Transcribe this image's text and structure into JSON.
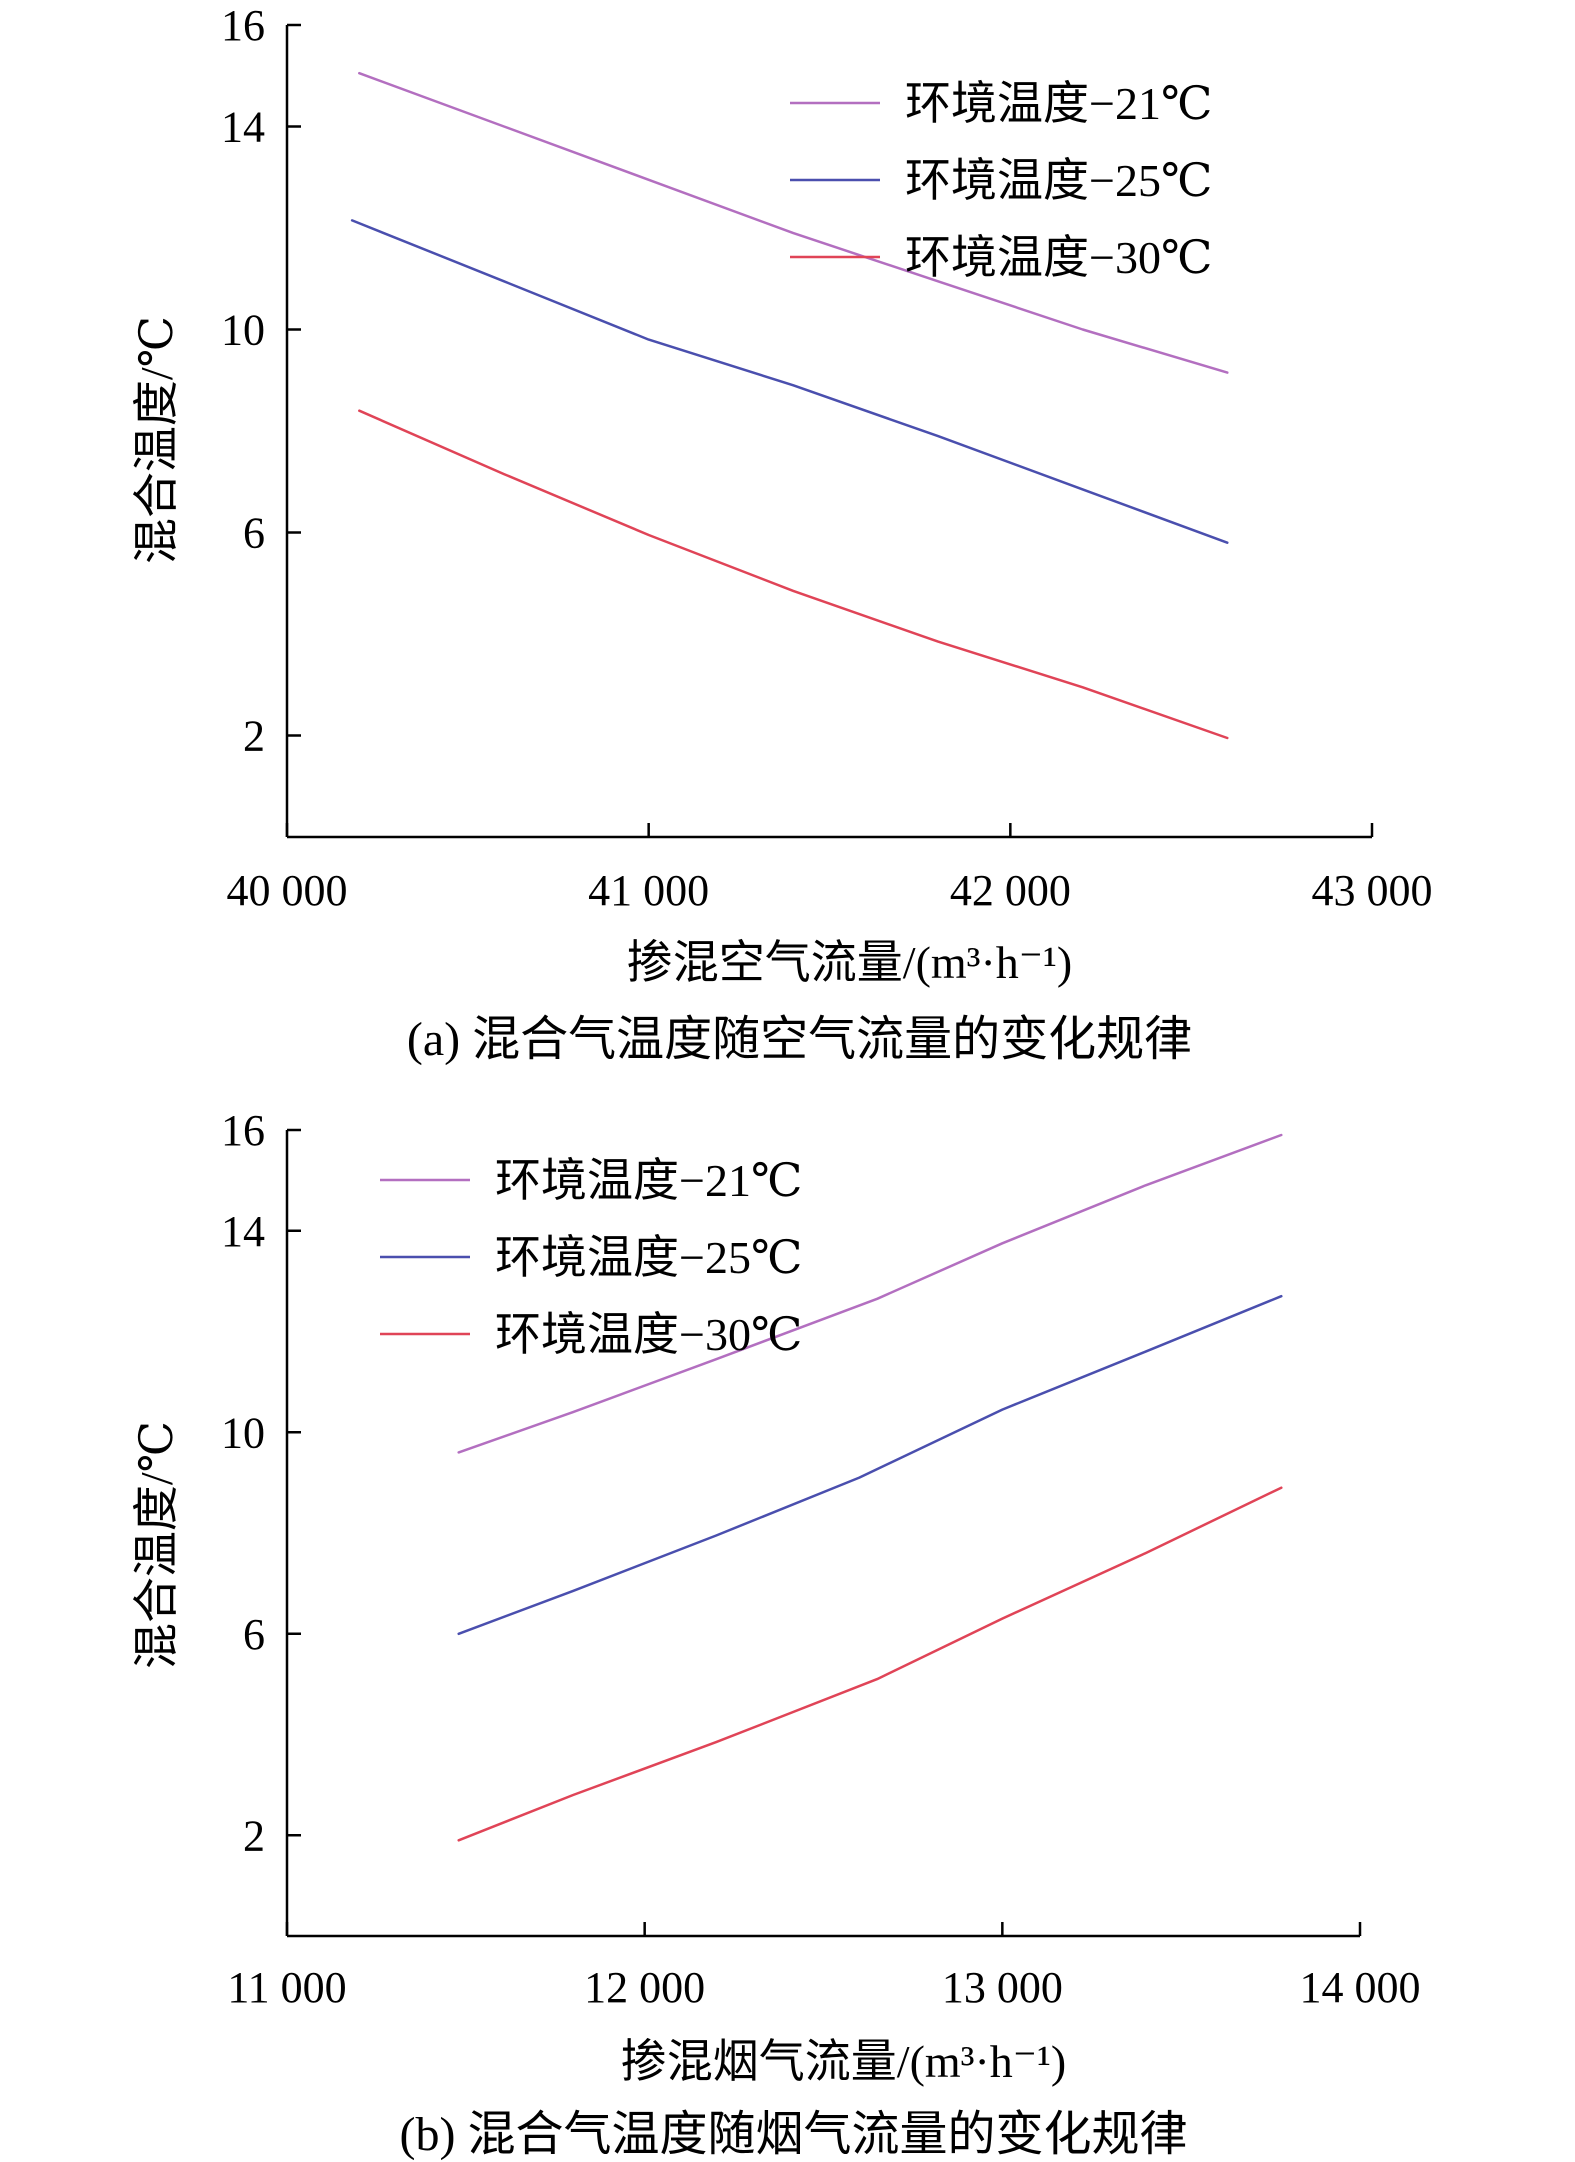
{
  "chart_data": [
    {
      "type": "line",
      "id": "a",
      "caption": "(a) 混合气温度随空气流量的变化规律",
      "xlabel": "掺混空气流量/(m³·h⁻¹)",
      "ylabel": "混合温度/℃",
      "xlim": [
        40000,
        43000
      ],
      "ylim": [
        0,
        16
      ],
      "xticks": [
        40000,
        41000,
        42000,
        43000
      ],
      "xtick_labels": [
        "40 000",
        "41 000",
        "42 000",
        "43 000"
      ],
      "yticks": [
        2,
        6,
        10,
        14,
        16
      ],
      "ytick_labels": [
        "2",
        "6",
        "10",
        "14",
        "16"
      ],
      "legend_position": "top-right",
      "grid": false,
      "series": [
        {
          "name": "环境温度−21℃",
          "color": "#b36fc0",
          "x": [
            40200,
            40600,
            41000,
            41400,
            41800,
            42200,
            42600
          ],
          "y": [
            15.05,
            14.0,
            12.95,
            11.9,
            10.95,
            10.0,
            9.15
          ]
        },
        {
          "name": "环境温度−25℃",
          "color": "#4a4fae",
          "x": [
            40180,
            40600,
            41000,
            41400,
            41800,
            42200,
            42600
          ],
          "y": [
            12.15,
            10.95,
            9.8,
            8.9,
            7.9,
            6.85,
            5.8
          ]
        },
        {
          "name": "环境温度−30℃",
          "color": "#e04457",
          "x": [
            40200,
            40600,
            41000,
            41400,
            41800,
            42200,
            42600
          ],
          "y": [
            8.4,
            7.15,
            5.95,
            4.85,
            3.85,
            2.95,
            1.95
          ]
        }
      ]
    },
    {
      "type": "line",
      "id": "b",
      "caption": "(b) 混合气温度随烟气流量的变化规律",
      "xlabel": "掺混烟气流量/(m³·h⁻¹)",
      "ylabel": "混合温度/℃",
      "xlim": [
        11000,
        14000
      ],
      "ylim": [
        0,
        16
      ],
      "xticks": [
        11000,
        12000,
        13000,
        14000
      ],
      "xtick_labels": [
        "11 000",
        "12 000",
        "13 000",
        "14 000"
      ],
      "yticks": [
        2,
        6,
        10,
        14,
        16
      ],
      "ytick_labels": [
        "2",
        "6",
        "10",
        "14",
        "16"
      ],
      "legend_position": "top-left",
      "grid": false,
      "series": [
        {
          "name": "环境温度−21℃",
          "color": "#b36fc0",
          "x": [
            11480,
            11800,
            12200,
            12650,
            13000,
            13400,
            13780
          ],
          "y": [
            9.6,
            10.4,
            11.45,
            12.65,
            13.75,
            14.9,
            15.9
          ]
        },
        {
          "name": "环境温度−25℃",
          "color": "#4a4fae",
          "x": [
            11480,
            11800,
            12200,
            12600,
            13000,
            13400,
            13780
          ],
          "y": [
            6.0,
            6.85,
            7.95,
            9.1,
            10.45,
            11.6,
            12.7
          ]
        },
        {
          "name": "环境温度−30℃",
          "color": "#e04457",
          "x": [
            11480,
            11800,
            12200,
            12650,
            13000,
            13400,
            13780
          ],
          "y": [
            1.9,
            2.8,
            3.85,
            5.1,
            6.3,
            7.6,
            8.9
          ]
        }
      ]
    }
  ]
}
